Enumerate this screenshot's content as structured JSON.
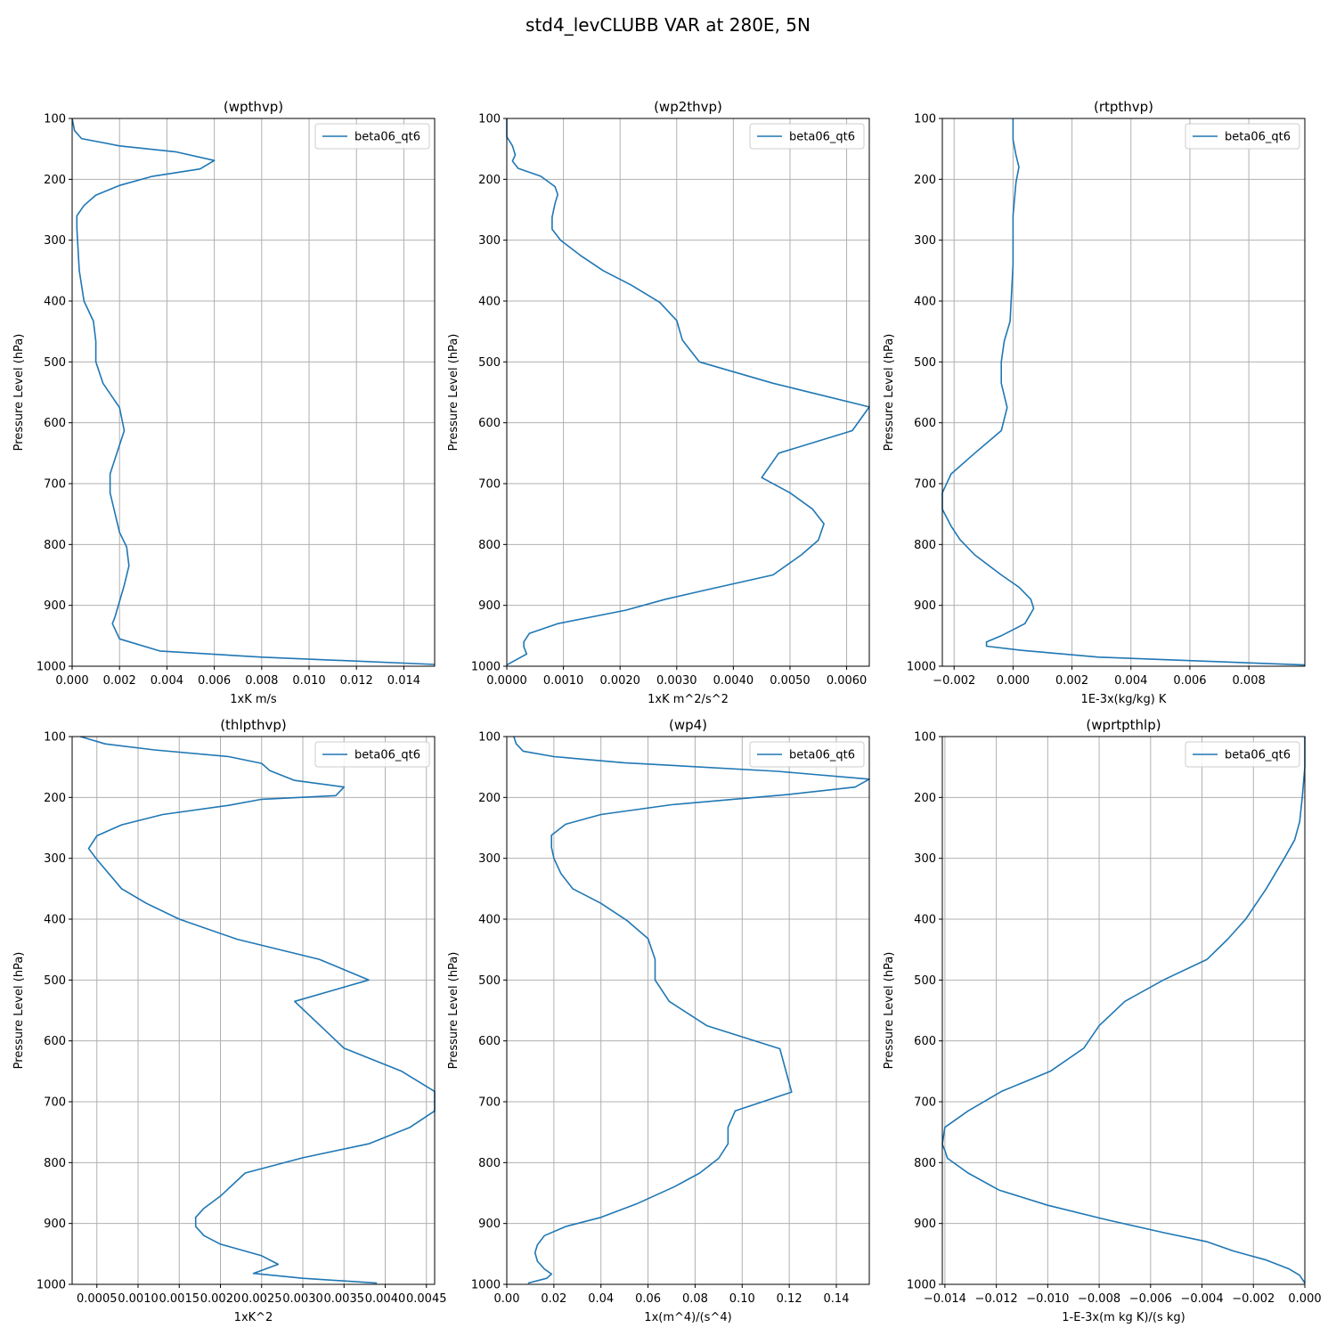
{
  "figure": {
    "title": "std4_levCLUBB VAR at 280E, 5N"
  },
  "style": {
    "line_color": "#1f77b4",
    "grid_color": "#b0b0b0",
    "axis_color": "#000000"
  },
  "chart_data": [
    {
      "type": "line",
      "title": "(wpthvp)",
      "xlabel": "1xK m/s",
      "ylabel": "Pressure Level (hPa)",
      "xlim": [
        0,
        0.0153
      ],
      "ylim": [
        1000,
        100
      ],
      "xticks": [
        0,
        0.002,
        0.004,
        0.006,
        0.008,
        0.01,
        0.012,
        0.014
      ],
      "xtick_labels": [
        "0.000",
        "0.002",
        "0.004",
        "0.006",
        "0.008",
        "0.010",
        "0.012",
        "0.014"
      ],
      "yticks": [
        100,
        200,
        300,
        400,
        500,
        600,
        700,
        800,
        900,
        1000
      ],
      "ytick_labels": [
        "100",
        "200",
        "300",
        "400",
        "500",
        "600",
        "700",
        "800",
        "900",
        "1000"
      ],
      "grid": true,
      "legend_position": "top-right",
      "series": [
        {
          "name": "beta06_qt6",
          "x": [
            0,
            0.0001,
            0.0004,
            0.002,
            0.0044,
            0.006,
            0.0054,
            0.0034,
            0.002,
            0.001,
            0.0005,
            0.0002,
            0.0002,
            0.0003,
            0.0005,
            0.0009,
            0.001,
            0.001,
            0.0013,
            0.002,
            0.0022,
            0.0016,
            0.0016,
            0.002,
            0.0023,
            0.0024,
            0.0022,
            0.0018,
            0.0017,
            0.002,
            0.0037,
            0.008,
            0.0153
          ],
          "y": [
            100,
            120,
            133,
            145,
            155,
            169,
            183,
            195,
            210,
            226,
            243,
            260,
            280,
            350,
            400,
            433,
            466,
            500,
            535,
            575,
            613,
            684,
            715,
            780,
            804,
            835,
            867,
            920,
            930,
            955,
            975,
            985,
            997
          ]
        }
      ]
    },
    {
      "type": "line",
      "title": "(wp2thvp)",
      "xlabel": "1xK m^2/s^2",
      "ylabel": "Pressure Level (hPa)",
      "xlim": [
        0,
        0.0064
      ],
      "ylim": [
        1000,
        100
      ],
      "xticks": [
        0,
        0.001,
        0.002,
        0.003,
        0.004,
        0.005,
        0.006
      ],
      "xtick_labels": [
        "0.0000",
        "0.0010",
        "0.0020",
        "0.0030",
        "0.0040",
        "0.0050",
        "0.0060"
      ],
      "yticks": [
        100,
        200,
        300,
        400,
        500,
        600,
        700,
        800,
        900,
        1000
      ],
      "ytick_labels": [
        "100",
        "200",
        "300",
        "400",
        "500",
        "600",
        "700",
        "800",
        "900",
        "1000"
      ],
      "grid": true,
      "legend_position": "top-right",
      "series": [
        {
          "name": "beta06_qt6",
          "x": [
            0,
            0,
            0.0001,
            0.00015,
            0.0001,
            0.0002,
            0.0006,
            0.00085,
            0.0009,
            0.00085,
            0.0008,
            0.0008,
            0.00095,
            0.0013,
            0.0017,
            0.0022,
            0.0027,
            0.003,
            0.0031,
            0.0034,
            0.0047,
            0.0064,
            0.0061,
            0.0048,
            0.0045,
            0.005,
            0.0054,
            0.0056,
            0.0055,
            0.0052,
            0.0047,
            0.0035,
            0.0028,
            0.0021,
            0.0009,
            0.0004,
            0.0003,
            0.0003,
            0.00035,
            0
          ],
          "y": [
            100,
            130,
            145,
            160,
            170,
            182,
            195,
            212,
            225,
            240,
            262,
            282,
            300,
            325,
            350,
            374,
            402,
            432,
            464,
            500,
            535,
            574,
            613,
            650,
            690,
            715,
            742,
            766,
            793,
            817,
            850,
            875,
            890,
            908,
            930,
            946,
            960,
            968,
            980,
            998
          ]
        }
      ]
    },
    {
      "type": "line",
      "title": "(rtpthvp)",
      "xlabel": "1E-3x(kg/kg) K",
      "ylabel": "Pressure Level (hPa)",
      "xlim": [
        -0.0024,
        0.0099
      ],
      "ylim": [
        1000,
        100
      ],
      "xticks": [
        -0.002,
        0,
        0.002,
        0.004,
        0.006,
        0.008
      ],
      "xtick_labels": [
        "−0.002",
        "0.000",
        "0.002",
        "0.004",
        "0.006",
        "0.008"
      ],
      "yticks": [
        100,
        200,
        300,
        400,
        500,
        600,
        700,
        800,
        900,
        1000
      ],
      "ytick_labels": [
        "100",
        "200",
        "300",
        "400",
        "500",
        "600",
        "700",
        "800",
        "900",
        "1000"
      ],
      "grid": true,
      "legend_position": "top-right",
      "series": [
        {
          "name": "beta06_qt6",
          "x": [
            0,
            0,
            0.0001,
            0.0002,
            0.0001,
            0,
            0,
            -0.0001,
            -0.0003,
            -0.0004,
            -0.0004,
            -0.0002,
            -0.0004,
            -0.0013,
            -0.0021,
            -0.0024,
            -0.0024,
            -0.0021,
            -0.0018,
            -0.0013,
            -0.0004,
            0.0002,
            0.0006,
            0.0007,
            0.0004,
            -0.0004,
            -0.0009,
            -0.0009,
            0.0003,
            0.0029,
            0.0099
          ],
          "y": [
            100,
            135,
            160,
            180,
            205,
            260,
            340,
            433,
            466,
            500,
            535,
            575,
            613,
            650,
            684,
            715,
            742,
            770,
            792,
            817,
            850,
            870,
            890,
            905,
            930,
            950,
            960,
            967,
            974,
            985,
            998
          ]
        }
      ]
    },
    {
      "type": "line",
      "title": "(thlpthvp)",
      "xlabel": "1xK^2",
      "ylabel": "Pressure Level (hPa)",
      "xlim": [
        0.0002,
        0.0046
      ],
      "ylim": [
        1000,
        100
      ],
      "xticks": [
        0.0005,
        0.001,
        0.0015,
        0.002,
        0.0025,
        0.003,
        0.0035,
        0.004,
        0.0045
      ],
      "xtick_labels": [
        "0.0005",
        "0.0010",
        "0.0015",
        "0.0020",
        "0.0025",
        "0.0030",
        "0.0035",
        "0.0040",
        "0.0045"
      ],
      "yticks": [
        100,
        200,
        300,
        400,
        500,
        600,
        700,
        800,
        900,
        1000
      ],
      "ytick_labels": [
        "100",
        "200",
        "300",
        "400",
        "500",
        "600",
        "700",
        "800",
        "900",
        "1000"
      ],
      "grid": true,
      "legend_position": "top-right",
      "series": [
        {
          "name": "beta06_qt6",
          "x": [
            0.0003,
            0.0006,
            0.0012,
            0.0021,
            0.0025,
            0.0026,
            0.0029,
            0.0035,
            0.0034,
            0.0025,
            0.0021,
            0.0013,
            0.0008,
            0.0005,
            0.0004,
            0.0005,
            0.0008,
            0.0011,
            0.0015,
            0.0022,
            0.0032,
            0.0038,
            0.0029,
            0.0035,
            0.0042,
            0.0046,
            0.0046,
            0.0043,
            0.0038,
            0.003,
            0.0023,
            0.002,
            0.0018,
            0.0017,
            0.0017,
            0.0018,
            0.002,
            0.0025,
            0.0027,
            0.0024,
            0.003,
            0.0039
          ],
          "y": [
            100,
            112,
            122,
            133,
            144,
            156,
            172,
            183,
            197,
            203,
            213,
            228,
            245,
            263,
            284,
            302,
            350,
            374,
            400,
            433,
            466,
            500,
            535,
            612,
            650,
            683,
            715,
            742,
            769,
            792,
            817,
            855,
            875,
            890,
            905,
            920,
            934,
            953,
            967,
            982,
            990,
            998
          ]
        }
      ]
    },
    {
      "type": "line",
      "title": "(wp4)",
      "xlabel": "1x(m^4)/(s^4)",
      "ylabel": "Pressure Level (hPa)",
      "xlim": [
        0,
        0.154
      ],
      "ylim": [
        1000,
        100
      ],
      "xticks": [
        0,
        0.02,
        0.04,
        0.06,
        0.08,
        0.1,
        0.12,
        0.14
      ],
      "xtick_labels": [
        "0.00",
        "0.02",
        "0.04",
        "0.06",
        "0.08",
        "0.10",
        "0.12",
        "0.14"
      ],
      "yticks": [
        100,
        200,
        300,
        400,
        500,
        600,
        700,
        800,
        900,
        1000
      ],
      "ytick_labels": [
        "100",
        "200",
        "300",
        "400",
        "500",
        "600",
        "700",
        "800",
        "900",
        "1000"
      ],
      "grid": true,
      "legend_position": "top-right",
      "series": [
        {
          "name": "beta06_qt6",
          "x": [
            0.003,
            0.004,
            0.007,
            0.02,
            0.05,
            0.115,
            0.154,
            0.148,
            0.12,
            0.07,
            0.04,
            0.025,
            0.019,
            0.019,
            0.02,
            0.023,
            0.028,
            0.04,
            0.051,
            0.06,
            0.063,
            0.063,
            0.069,
            0.085,
            0.116,
            0.121,
            0.097,
            0.094,
            0.094,
            0.09,
            0.082,
            0.071,
            0.055,
            0.04,
            0.025,
            0.016,
            0.013,
            0.012,
            0.013,
            0.016,
            0.019,
            0.017,
            0.009
          ],
          "y": [
            100,
            112,
            124,
            133,
            143,
            157,
            170,
            183,
            195,
            212,
            228,
            244,
            262,
            282,
            300,
            325,
            350,
            374,
            402,
            432,
            466,
            500,
            535,
            575,
            613,
            684,
            715,
            742,
            769,
            793,
            817,
            840,
            868,
            890,
            905,
            920,
            935,
            948,
            962,
            975,
            983,
            990,
            998
          ]
        }
      ]
    },
    {
      "type": "line",
      "title": "(wprtpthlp)",
      "xlabel": "1-E-3x(m kg K)/(s kg)",
      "ylabel": "Pressure Level (hPa)",
      "xlim": [
        -0.0141,
        0
      ],
      "ylim": [
        1000,
        100
      ],
      "xticks": [
        -0.014,
        -0.012,
        -0.01,
        -0.008,
        -0.006,
        -0.004,
        -0.002,
        0
      ],
      "xtick_labels": [
        "−0.014",
        "−0.012",
        "−0.010",
        "−0.008",
        "−0.006",
        "−0.004",
        "−0.002",
        "0.000"
      ],
      "yticks": [
        100,
        200,
        300,
        400,
        500,
        600,
        700,
        800,
        900,
        1000
      ],
      "ytick_labels": [
        "100",
        "200",
        "300",
        "400",
        "500",
        "600",
        "700",
        "800",
        "900",
        "1000"
      ],
      "grid": true,
      "legend_position": "top-right",
      "series": [
        {
          "name": "beta06_qt6",
          "x": [
            0,
            0,
            -0.0001,
            -0.0002,
            -0.0004,
            -0.0008,
            -0.0015,
            -0.0023,
            -0.003,
            -0.0038,
            -0.0055,
            -0.007,
            -0.008,
            -0.0086,
            -0.0099,
            -0.0118,
            -0.0131,
            -0.014,
            -0.0141,
            -0.014,
            -0.0139,
            -0.0131,
            -0.0119,
            -0.01,
            -0.0078,
            -0.0055,
            -0.0038,
            -0.0028,
            -0.0015,
            -0.0006,
            -0.0002,
            0
          ],
          "y": [
            100,
            150,
            200,
            240,
            270,
            300,
            350,
            400,
            433,
            466,
            500,
            535,
            575,
            612,
            650,
            683,
            715,
            742,
            770,
            780,
            793,
            817,
            845,
            870,
            893,
            915,
            930,
            945,
            960,
            975,
            985,
            998
          ]
        }
      ]
    }
  ]
}
